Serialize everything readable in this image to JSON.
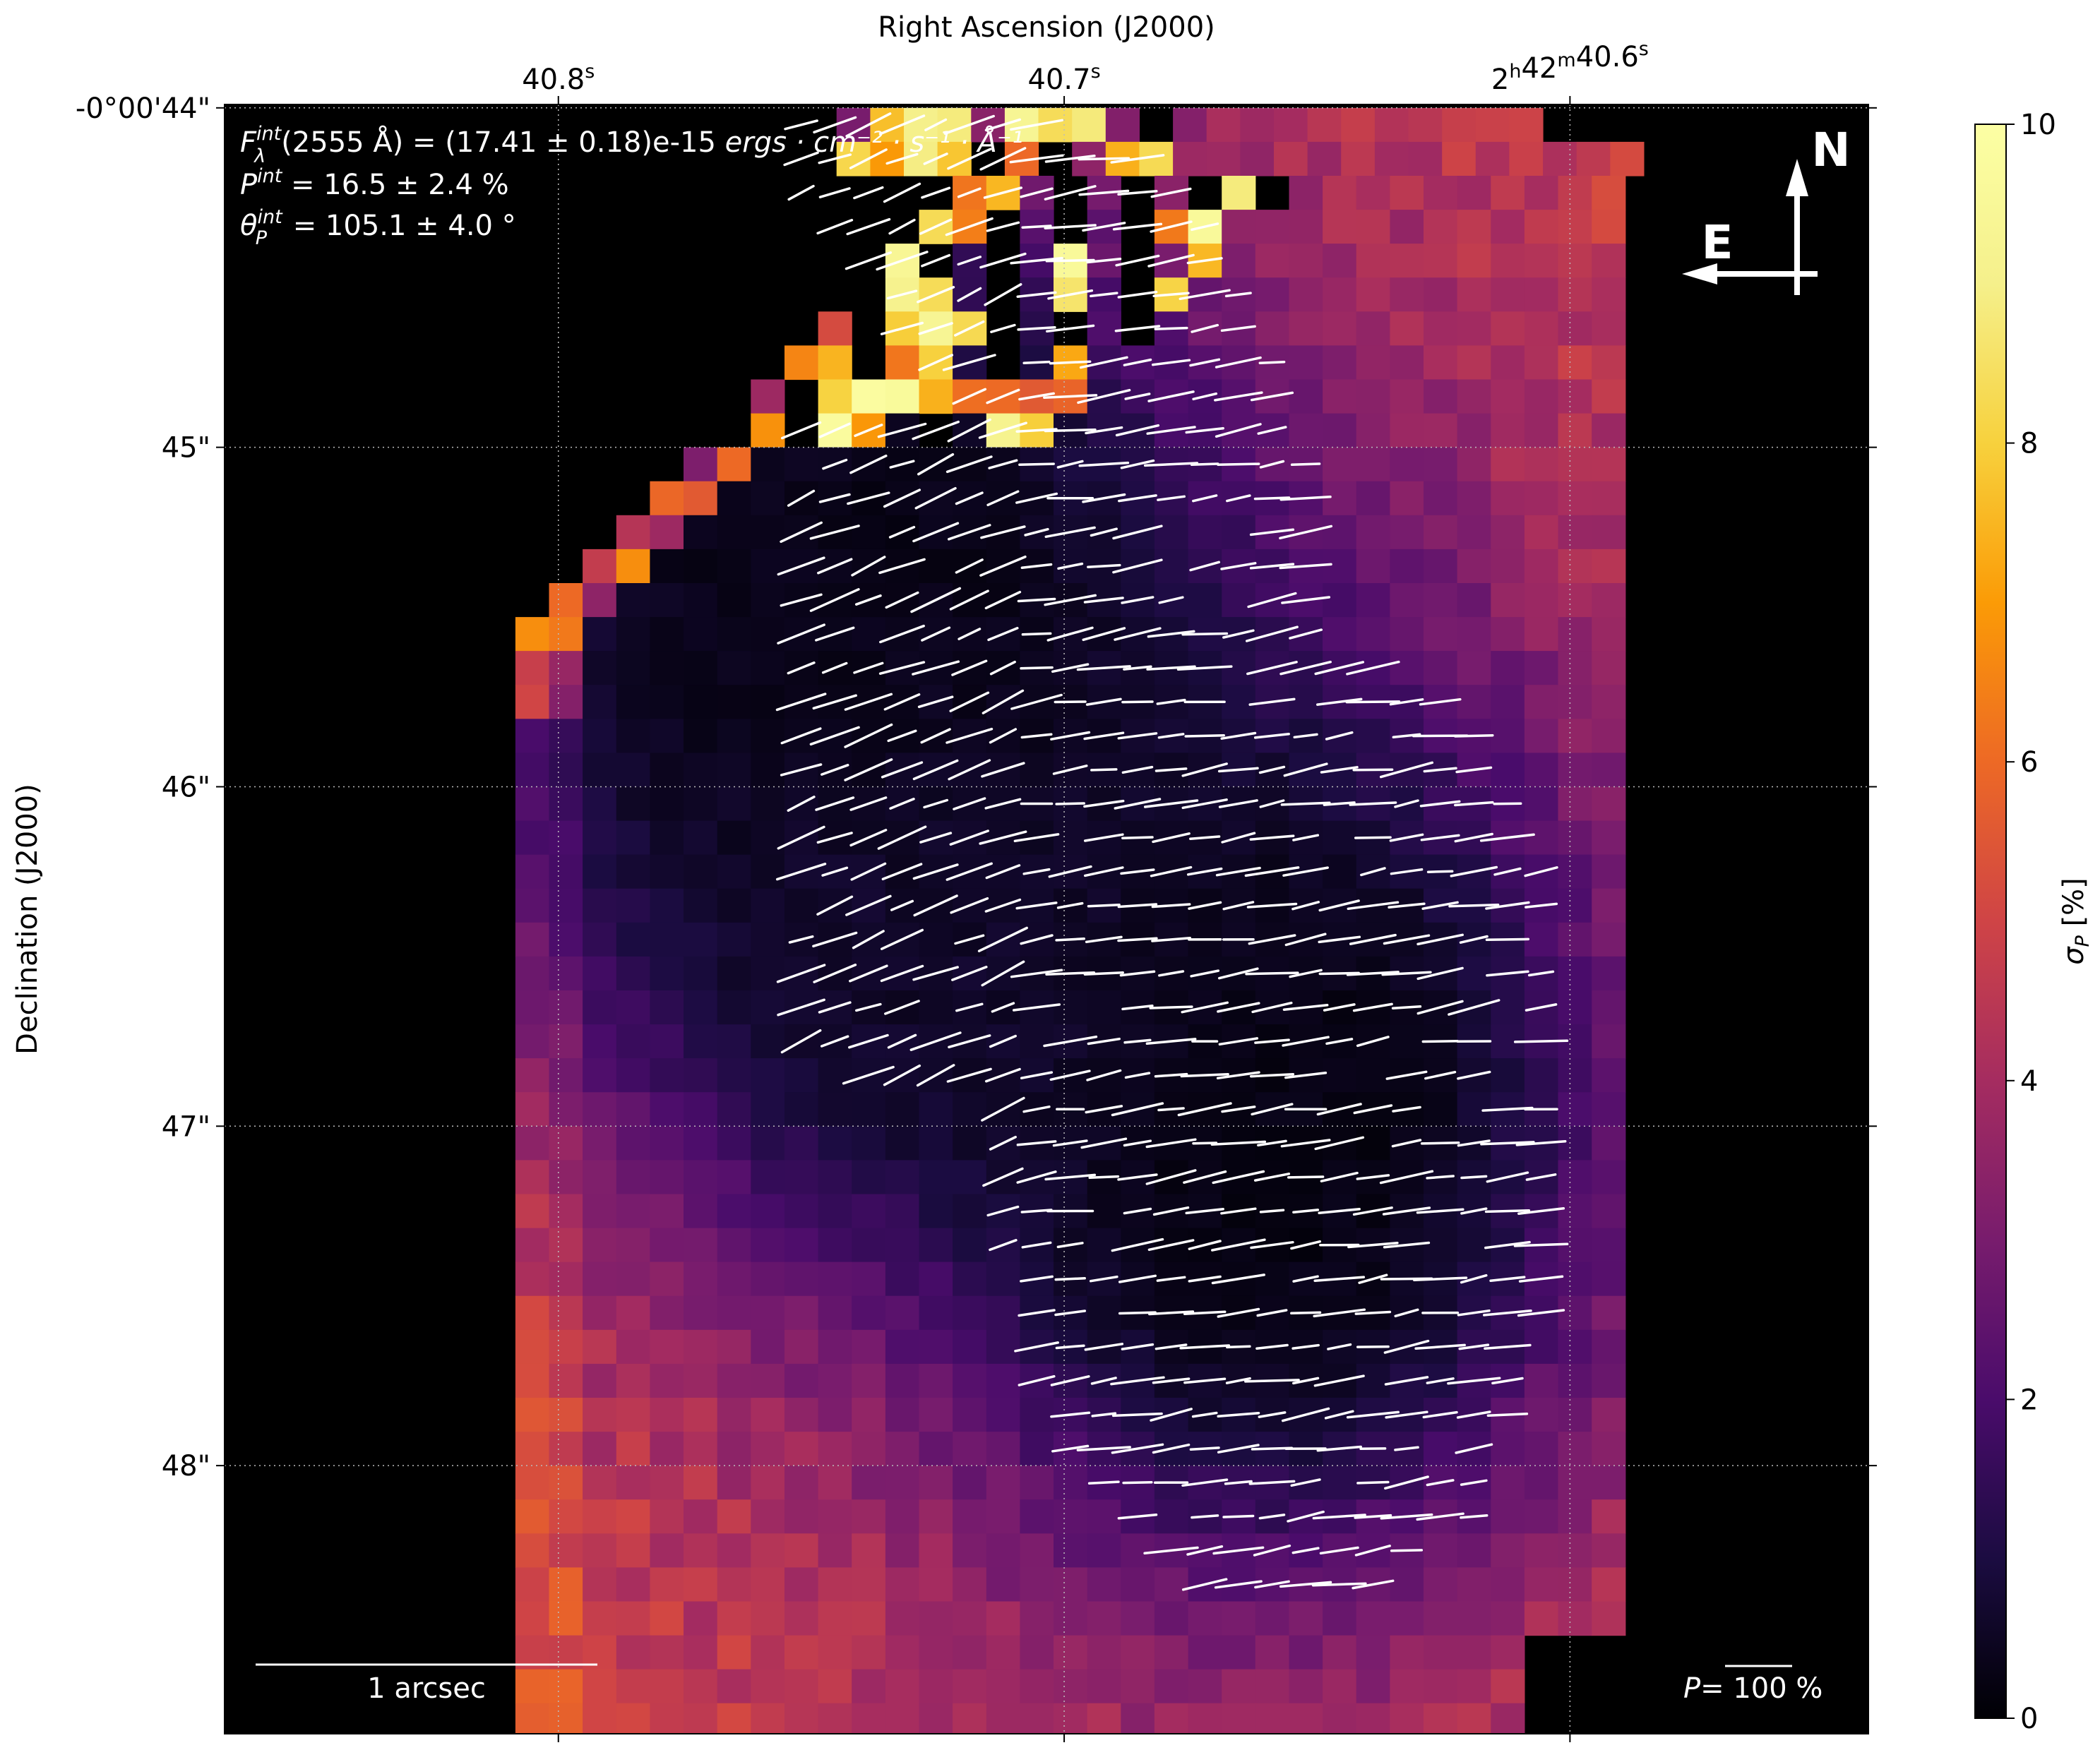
{
  "chart_data": {
    "type": "heatmap",
    "title": "",
    "xlabel": "Right Ascension (J2000)",
    "ylabel": "Declination (J2000)",
    "x_ticks": [
      {
        "base": "40.8",
        "sup": "s",
        "value": 40.8
      },
      {
        "base": "40.7",
        "sup": "s",
        "value": 40.7
      },
      {
        "parts": [
          [
            "2",
            "h"
          ],
          [
            "42",
            "m"
          ],
          [
            "40.6",
            "s"
          ]
        ],
        "value": 40.6
      }
    ],
    "y_ticks": [
      {
        "label": "-0°00'44\"",
        "value": 44
      },
      {
        "label": "45\"",
        "value": 45
      },
      {
        "label": "46\"",
        "value": 46
      },
      {
        "label": "47\"",
        "value": 47
      },
      {
        "label": "48\"",
        "value": 48
      }
    ],
    "xlim": [
      40.866,
      40.541
    ],
    "ylim": [
      48.79,
      43.99
    ],
    "grid": true,
    "colormap": "inferno",
    "colorbar": {
      "label": "σP [%]",
      "label_main": "σ",
      "label_sub": "P",
      "label_rest": " [%]",
      "min": 0,
      "max": 10,
      "ticks": [
        0,
        2,
        4,
        6,
        8,
        10
      ]
    },
    "annotations": {
      "flux": {
        "sym": "F",
        "sup": "int",
        "sub": "λ",
        "wl": "(2555 Å)",
        "value": " = (17.41 ± 0.18)e-15 ",
        "units": "ergs · cm⁻² · s⁻¹ · Å⁻¹"
      },
      "pol": {
        "sym": "P",
        "sup": "int",
        "value": " = 16.5 ± 2.4 %"
      },
      "angle": {
        "sym": "θ",
        "sub": "P",
        "sup": "int",
        "value": " = 105.1 ± 4.0 °"
      }
    },
    "scalebar_label": "1 arcsec",
    "pol_scale_sym": "P",
    "pol_scale_value": "= 100 %",
    "compass": {
      "north": "N",
      "east": "E"
    },
    "background_approx": {
      "cold_regions": [
        {
          "x": 40.745,
          "y": 45.55,
          "rx": 0.088,
          "ry": 1.45,
          "floor": 0.3
        },
        {
          "x": 40.66,
          "y": 47.0,
          "rx": 0.07,
          "ry": 1.4,
          "floor": 0.2
        },
        {
          "x": 40.725,
          "y": 46.55,
          "rx": 0.05,
          "ry": 0.7,
          "floor": 0.6
        }
      ],
      "edge_level": 5.2,
      "noise": 0.55
    }
  }
}
